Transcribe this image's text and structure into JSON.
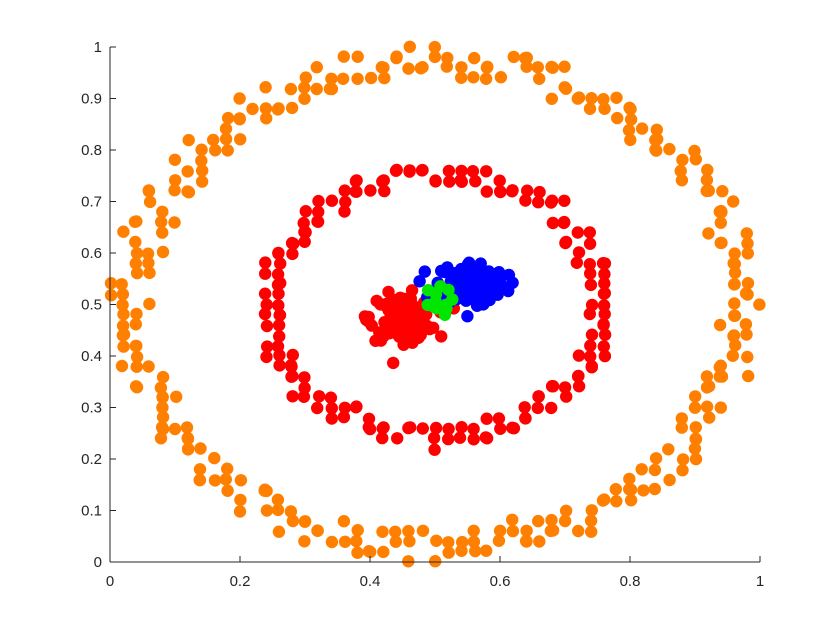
{
  "chart_data": {
    "type": "scatter",
    "title": "",
    "xlabel": "",
    "ylabel": "",
    "xlim": [
      0,
      1
    ],
    "ylim": [
      0,
      1
    ],
    "grid": false,
    "box": false,
    "x_ticks": [
      0,
      0.2,
      0.4,
      0.6,
      0.8,
      1
    ],
    "y_ticks": [
      0,
      0.1,
      0.2,
      0.3,
      0.4,
      0.5,
      0.6,
      0.7,
      0.8,
      0.9,
      1
    ],
    "x_tick_labels": [
      "0",
      "0.2",
      "0.4",
      "0.6",
      "0.8",
      "1"
    ],
    "y_tick_labels": [
      "0",
      "0.1",
      "0.2",
      "0.3",
      "0.4",
      "0.5",
      "0.6",
      "0.7",
      "0.8",
      "0.9",
      "1"
    ],
    "series": [
      {
        "color": "#ff8000",
        "shape": "ring",
        "center": [
          0.5,
          0.5
        ],
        "radius": 0.47,
        "band": 0.03,
        "count": 300
      },
      {
        "color": "#ff0000",
        "shape": "ring",
        "center": [
          0.5,
          0.5
        ],
        "radius": 0.255,
        "band": 0.02,
        "count": 170
      },
      {
        "color": "#ff0000",
        "shape": "cluster",
        "center": [
          0.45,
          0.475
        ],
        "spread": [
          0.025,
          0.022
        ],
        "count": 130
      },
      {
        "color": "#0000ff",
        "shape": "cluster",
        "center": [
          0.555,
          0.54
        ],
        "spread": [
          0.027,
          0.022
        ],
        "count": 150
      },
      {
        "color": "#00e600",
        "shape": "cluster",
        "center": [
          0.5,
          0.505
        ],
        "spread": [
          0.013,
          0.013
        ],
        "count": 16
      }
    ]
  }
}
